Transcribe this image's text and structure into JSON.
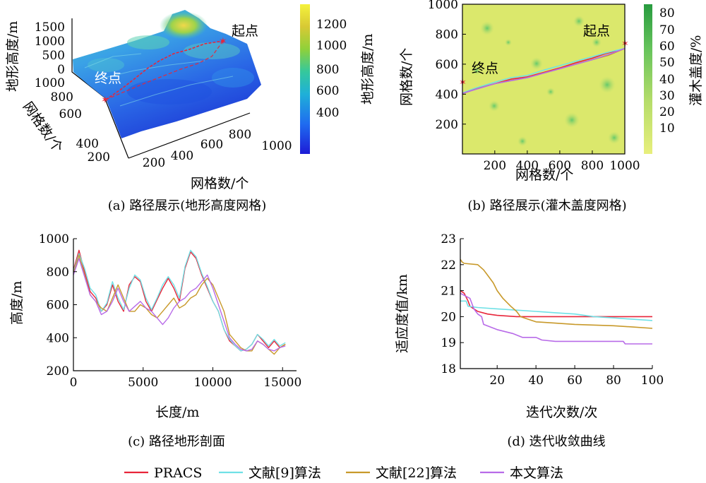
{
  "colors": {
    "PRACS": "#e8253a",
    "ref9": "#70e1e6",
    "ref22": "#c8992a",
    "ours": "#b86be8"
  },
  "legend": [
    {
      "label": "PRACS",
      "color_key": "PRACS"
    },
    {
      "label": "文献[9]算法",
      "color_key": "ref9"
    },
    {
      "label": "文献[22]算法",
      "color_key": "ref22"
    },
    {
      "label": "本文算法",
      "color_key": "ours"
    }
  ],
  "chart_data": [
    {
      "id": "a",
      "type": "surface3d",
      "caption": "(a) 路径展示(地形高度网格)",
      "zlabel": "地形高度/m",
      "ylabel": "网格数/个",
      "xlabel": "网格数/个",
      "z_ticks": [
        "0",
        "500",
        "1000",
        "1500"
      ],
      "y_ticks": [
        "1000",
        "800",
        "600",
        "400",
        "200"
      ],
      "x_ticks": [
        "200",
        "400",
        "600",
        "800",
        "1000"
      ],
      "colorbar": {
        "label": "地形高度/m",
        "ticks": [
          "1200",
          "1000",
          "800",
          "600",
          "400"
        ]
      },
      "annotations": {
        "start": "起点",
        "end": "终点"
      }
    },
    {
      "id": "b",
      "type": "heatmap",
      "caption": "(b) 路径展示(灌木盖度网格)",
      "xlabel": "网格数/个",
      "ylabel": "网格数/个",
      "x_ticks": [
        "200",
        "400",
        "600",
        "800",
        "1000"
      ],
      "y_ticks": [
        "1000",
        "800",
        "600",
        "400",
        "200"
      ],
      "xlim": [
        1,
        1000
      ],
      "ylim": [
        1,
        1000
      ],
      "colorbar": {
        "label": "灌木盖度/%",
        "ticks": [
          "80",
          "70",
          "60",
          "50",
          "40",
          "30",
          "20",
          "10"
        ]
      },
      "annotations": {
        "start": "起点",
        "end": "终点"
      },
      "paths": [
        {
          "name": "PRACS",
          "x": [
            1,
            80,
            200,
            300,
            400,
            500,
            600,
            700,
            800,
            880,
            950,
            1000
          ],
          "y": [
            405,
            435,
            470,
            500,
            515,
            545,
            575,
            610,
            640,
            670,
            690,
            705
          ]
        },
        {
          "name": "文献[9]算法",
          "x": [
            1,
            80,
            200,
            300,
            400,
            500,
            600,
            700,
            800,
            880,
            950,
            1000
          ],
          "y": [
            408,
            440,
            480,
            510,
            525,
            560,
            590,
            620,
            650,
            675,
            693,
            705
          ]
        },
        {
          "name": "文献[22]算法",
          "x": [
            1,
            100,
            200,
            300,
            400,
            500,
            600,
            700,
            800,
            900,
            1000
          ],
          "y": [
            405,
            440,
            470,
            490,
            510,
            540,
            570,
            600,
            630,
            660,
            705
          ]
        },
        {
          "name": "本文算法",
          "x": [
            1,
            100,
            200,
            300,
            400,
            500,
            600,
            700,
            800,
            900,
            1000
          ],
          "y": [
            405,
            438,
            470,
            490,
            510,
            540,
            570,
            600,
            630,
            665,
            705
          ]
        }
      ]
    },
    {
      "id": "c",
      "type": "line",
      "caption": "(c) 路径地形剖面",
      "xlabel": "长度/m",
      "ylabel": "高度/m",
      "xlim": [
        0,
        16000
      ],
      "ylim": [
        200,
        1000
      ],
      "x_ticks": [
        "0",
        "5000",
        "10000",
        "15000"
      ],
      "y_ticks": [
        "1000",
        "800",
        "600",
        "400",
        "200"
      ],
      "series": [
        {
          "name": "PRACS",
          "x": [
            0,
            400,
            800,
            1200,
            1600,
            2000,
            2400,
            2800,
            3200,
            3600,
            4000,
            4400,
            4800,
            5200,
            5600,
            6000,
            6400,
            6800,
            7200,
            7600,
            8000,
            8400,
            8800,
            9200,
            9600,
            10000,
            10400,
            10800,
            11200,
            11600,
            12000,
            12400,
            12800,
            13200,
            13600,
            14000,
            14400,
            14800,
            15200
          ],
          "y": [
            810,
            930,
            800,
            680,
            640,
            560,
            600,
            720,
            620,
            560,
            720,
            770,
            740,
            620,
            560,
            630,
            700,
            760,
            700,
            620,
            820,
            920,
            880,
            780,
            700,
            620,
            560,
            450,
            380,
            350,
            320,
            330,
            360,
            420,
            380,
            340,
            380,
            340,
            360
          ]
        },
        {
          "name": "文献[9]算法",
          "x": [
            0,
            400,
            800,
            1200,
            1600,
            2000,
            2400,
            2800,
            3200,
            3600,
            4000,
            4400,
            4800,
            5200,
            5600,
            6000,
            6400,
            6800,
            7200,
            7600,
            8000,
            8400,
            8800,
            9200,
            9600,
            10000,
            10400,
            10800,
            11200,
            11600,
            12000,
            12400,
            12800,
            13200,
            13600,
            14000,
            14400,
            14800,
            15200
          ],
          "y": [
            800,
            910,
            820,
            700,
            660,
            560,
            610,
            740,
            640,
            570,
            700,
            780,
            750,
            640,
            570,
            640,
            720,
            770,
            720,
            640,
            830,
            930,
            890,
            790,
            710,
            620,
            560,
            450,
            390,
            350,
            320,
            330,
            360,
            420,
            390,
            350,
            390,
            350,
            370
          ]
        },
        {
          "name": "文献[22]算法",
          "x": [
            0,
            400,
            800,
            1200,
            1600,
            2000,
            2400,
            2800,
            3200,
            3600,
            4000,
            4400,
            4800,
            5200,
            5600,
            6000,
            6400,
            6800,
            7200,
            7600,
            8000,
            8400,
            8800,
            9200,
            9600,
            10000,
            10400,
            10800,
            11200,
            11600,
            12000,
            12400,
            12800,
            13200,
            13600,
            14000,
            14400,
            14800,
            15200
          ],
          "y": [
            790,
            900,
            780,
            660,
            620,
            580,
            560,
            640,
            720,
            640,
            560,
            560,
            600,
            580,
            540,
            520,
            560,
            600,
            640,
            580,
            600,
            640,
            660,
            720,
            760,
            720,
            640,
            560,
            420,
            380,
            340,
            320,
            320,
            380,
            360,
            330,
            300,
            340,
            360
          ]
        },
        {
          "name": "本文算法",
          "x": [
            0,
            400,
            800,
            1200,
            1600,
            2000,
            2400,
            2800,
            3200,
            3600,
            4000,
            4400,
            4800,
            5200,
            5600,
            6000,
            6400,
            6800,
            7200,
            7600,
            8000,
            8400,
            8800,
            9200,
            9600,
            10000,
            10400,
            10800,
            11200,
            11600,
            12000,
            12400,
            12800,
            13200,
            13600,
            14000,
            14400,
            14800,
            15200
          ],
          "y": [
            780,
            880,
            770,
            660,
            620,
            540,
            560,
            620,
            700,
            620,
            560,
            590,
            620,
            580,
            560,
            520,
            480,
            520,
            580,
            620,
            640,
            680,
            700,
            740,
            780,
            700,
            600,
            500,
            400,
            360,
            330,
            320,
            330,
            380,
            360,
            330,
            320,
            340,
            350
          ]
        }
      ]
    },
    {
      "id": "d",
      "type": "line",
      "caption": "(d) 迭代收敛曲线",
      "xlabel": "迭代次数/次",
      "ylabel": "适应度值/km",
      "xlim": [
        1,
        100
      ],
      "ylim": [
        18,
        23
      ],
      "x_ticks": [
        "20",
        "40",
        "60",
        "80",
        "100"
      ],
      "y_ticks": [
        "23",
        "22",
        "21",
        "20",
        "19",
        "18"
      ],
      "series": [
        {
          "name": "PRACS",
          "x": [
            1,
            3,
            5,
            6,
            8,
            10,
            15,
            20,
            30,
            40,
            60,
            80,
            100
          ],
          "y": [
            21.0,
            20.9,
            20.6,
            20.4,
            20.3,
            20.2,
            20.1,
            20.05,
            20.0,
            20.0,
            20.0,
            20.0,
            20.0
          ]
        },
        {
          "name": "文献[9]算法",
          "x": [
            1,
            4,
            5,
            10,
            20,
            30,
            40,
            50,
            60,
            70,
            80,
            90,
            100
          ],
          "y": [
            20.6,
            20.6,
            20.4,
            20.35,
            20.3,
            20.25,
            20.2,
            20.15,
            20.1,
            20.0,
            19.95,
            19.9,
            19.85
          ]
        },
        {
          "name": "文献[22]算法",
          "x": [
            1,
            2,
            3,
            10,
            13,
            15,
            18,
            20,
            23,
            27,
            30,
            32,
            36,
            40,
            50,
            60,
            80,
            90,
            100
          ],
          "y": [
            22.2,
            22.1,
            22.05,
            22.0,
            21.8,
            21.6,
            21.3,
            21.0,
            20.7,
            20.4,
            20.2,
            20.0,
            19.9,
            19.8,
            19.75,
            19.7,
            19.65,
            19.6,
            19.55
          ]
        },
        {
          "name": "本文算法",
          "x": [
            1,
            6,
            8,
            10,
            12,
            13,
            20,
            28,
            33,
            40,
            43,
            50,
            60,
            70,
            80,
            85,
            86,
            100
          ],
          "y": [
            20.9,
            20.7,
            20.3,
            20.1,
            20.0,
            19.7,
            19.5,
            19.35,
            19.2,
            19.2,
            19.1,
            19.05,
            19.05,
            19.05,
            19.05,
            19.05,
            18.95,
            18.95
          ]
        }
      ]
    }
  ]
}
